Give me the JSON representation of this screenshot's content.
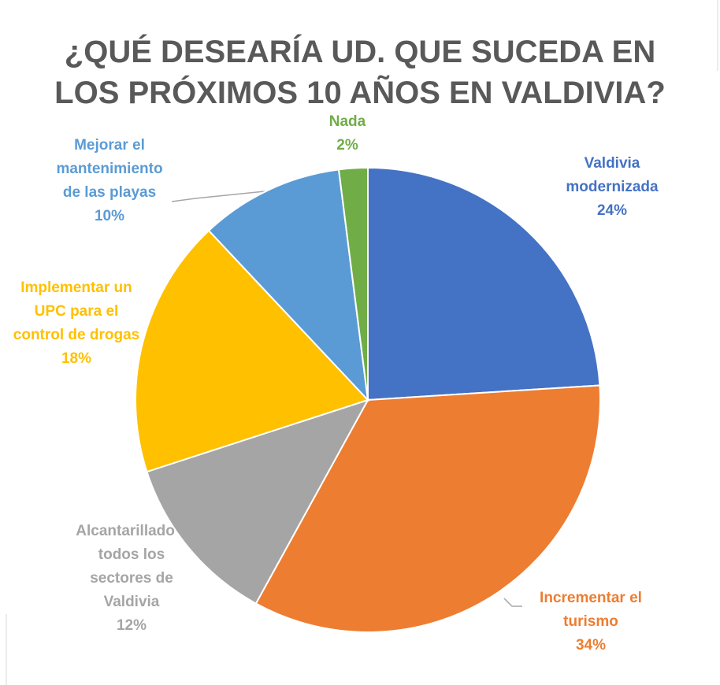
{
  "chart_data": {
    "type": "pie",
    "title": "¿QUÉ DESEARÍA UD. QUE SUCEDA EN LOS PRÓXIMOS 10 AÑOS EN VALDIVIA?",
    "categories": [
      "Valdivia modernizada",
      "Incrementar el turismo",
      "Alcantarillado a todos los sectores de Valdivia",
      "Implementar un UPC para el control de drogas",
      "Mejorar el mantenimiento de las playas",
      "Nada"
    ],
    "values": [
      24,
      34,
      12,
      18,
      10,
      2
    ],
    "value_labels": [
      "24%",
      "34%",
      "12%",
      "18%",
      "10%",
      "2%"
    ],
    "colors": [
      "#4472c4",
      "#ed7d31",
      "#a5a5a5",
      "#ffc000",
      "#5b9bd5",
      "#70ad47"
    ]
  }
}
